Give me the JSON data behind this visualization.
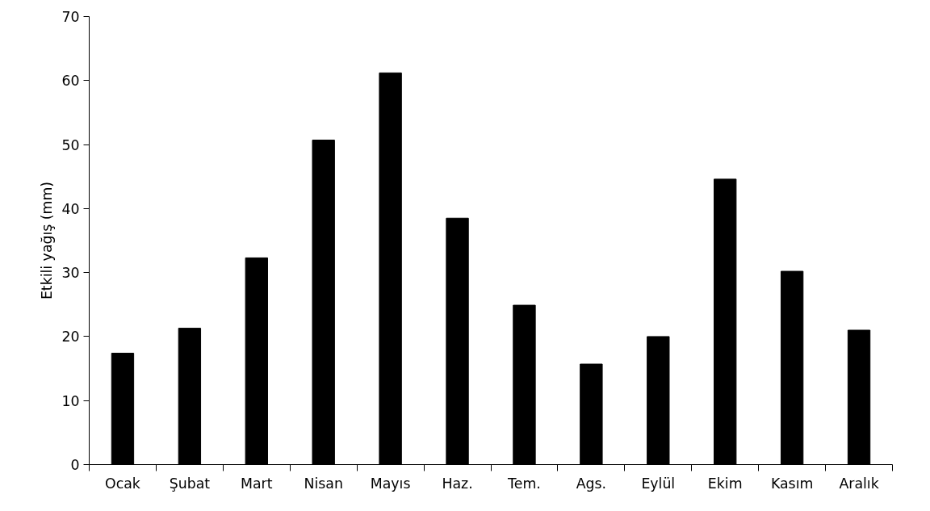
{
  "chart_data": {
    "type": "bar",
    "ylabel": "Etkili yağış (mm)",
    "categories": [
      "Ocak",
      "Şubat",
      "Mart",
      "Nisan",
      "Mayıs",
      "Haz.",
      "Tem.",
      "Ags.",
      "Eylül",
      "Ekim",
      "Kasım",
      "Aralık"
    ],
    "values": [
      17.4,
      21.3,
      32.3,
      50.7,
      61.2,
      38.5,
      24.9,
      15.7,
      20.0,
      44.6,
      30.2,
      21.0
    ],
    "color": "#000000",
    "ylim": [
      0,
      70
    ],
    "yticks": [
      0,
      10,
      20,
      30,
      40,
      50,
      60,
      70
    ],
    "grid": false
  }
}
